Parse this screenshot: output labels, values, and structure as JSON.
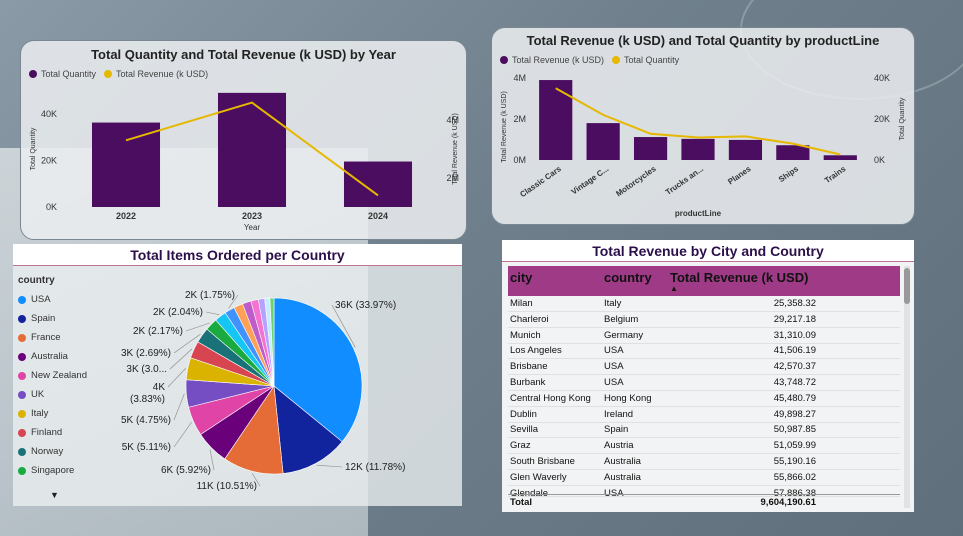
{
  "colors": {
    "quantity": "#4a0d5f",
    "revenue": "#e6b800",
    "table_header": "#9e3a86",
    "table_title": "#2b0f4a"
  },
  "chart_data": [
    {
      "type": "bar",
      "title": "Total Quantity and Total Revenue (k USD) by Year",
      "legend": [
        "Total Quantity",
        "Total Revenue (k USD)"
      ],
      "xlabel": "Year",
      "ylabel": "Total Quantity",
      "y2label": "Total Revenue (k USD)",
      "categories": [
        "2022",
        "2023",
        "2024"
      ],
      "y_ticks": [
        "0K",
        "20K",
        "40K"
      ],
      "y2_ticks": [
        "2M",
        "4M"
      ],
      "ylim": [
        0,
        50000
      ],
      "y2lim": [
        1000,
        5000
      ],
      "series": [
        {
          "name": "Total Quantity",
          "type": "bar",
          "values": [
            36400,
            49200,
            19600
          ]
        },
        {
          "name": "Total Revenue (k USD)",
          "type": "line",
          "values": [
            3300,
            4600,
            1400
          ]
        }
      ]
    },
    {
      "type": "bar",
      "title": "Total Revenue (k USD) and Total Quantity by productLine",
      "legend": [
        "Total Revenue (k USD)",
        "Total Quantity"
      ],
      "xlabel": "productLine",
      "ylabel": "Total Revenue (k USD)",
      "y2label": "Total Quantity",
      "categories": [
        "Classic Cars",
        "Vintage C...",
        "Motorcycles",
        "Trucks an...",
        "Planes",
        "Ships",
        "Trains"
      ],
      "y_ticks": [
        "0M",
        "2M",
        "4M"
      ],
      "y2_ticks": [
        "0K",
        "20K",
        "40K"
      ],
      "ylim": [
        0,
        4000
      ],
      "y2lim": [
        0,
        40000
      ],
      "series": [
        {
          "name": "Total Revenue (k USD)",
          "type": "bar",
          "values": [
            3900,
            1800,
            1120,
            1030,
            980,
            720,
            230
          ]
        },
        {
          "name": "Total Quantity",
          "type": "line",
          "values": [
            35000,
            22000,
            12800,
            11000,
            11500,
            8000,
            2700
          ]
        }
      ]
    },
    {
      "type": "pie",
      "title": "Total Items Ordered per Country",
      "legend_title": "country",
      "legend": [
        "USA",
        "Spain",
        "France",
        "Australia",
        "New Zealand",
        "UK",
        "Italy",
        "Finland",
        "Norway",
        "Singapore"
      ],
      "slices": [
        {
          "name": "USA",
          "value": 33.97,
          "label": "36K (33.97%)",
          "color": "#118dff"
        },
        {
          "name": "Spain",
          "value": 11.78,
          "label": "12K (11.78%)",
          "color": "#12239e"
        },
        {
          "name": "France",
          "value": 10.51,
          "label": "11K (10.51%)",
          "color": "#e66c37"
        },
        {
          "name": "Australia",
          "value": 5.92,
          "label": "6K (5.92%)",
          "color": "#6b007b"
        },
        {
          "name": "New Zealand",
          "value": 5.11,
          "label": "5K (5.11%)",
          "color": "#e044a7"
        },
        {
          "name": "UK",
          "value": 4.75,
          "label": "5K (4.75%)",
          "color": "#744ec2"
        },
        {
          "name": "Italy",
          "value": 3.83,
          "label": "4K\n(3.83%)",
          "color": "#d9b300"
        },
        {
          "name": "Finland",
          "value": 3.0,
          "label": "3K (3.0...",
          "color": "#d64550"
        },
        {
          "name": "Norway",
          "value": 2.69,
          "label": "3K (2.69%)",
          "color": "#197278"
        },
        {
          "name": "Singapore",
          "value": 2.17,
          "label": "2K (2.17%)",
          "color": "#1aab40"
        },
        {
          "name": "",
          "value": 2.04,
          "label": "2K (2.04%)",
          "color": "#15c6f4"
        },
        {
          "name": "",
          "value": 1.75,
          "label": "2K (1.75%)",
          "color": "#4092ff"
        },
        {
          "name": "",
          "value": 1.6,
          "label": "",
          "color": "#ffa058"
        },
        {
          "name": "",
          "value": 1.5,
          "label": "",
          "color": "#be5dc9"
        },
        {
          "name": "",
          "value": 1.3,
          "label": "",
          "color": "#f472d0"
        },
        {
          "name": "",
          "value": 1.1,
          "label": "",
          "color": "#b5a1ff"
        },
        {
          "name": "",
          "value": 0.9,
          "label": "",
          "color": "#c4ecff"
        },
        {
          "name": "",
          "value": 0.7,
          "label": "",
          "color": "#6bd46b"
        }
      ]
    }
  ],
  "table": {
    "title": "Total Revenue by City and Country",
    "headers": [
      "city",
      "country",
      "Total Revenue (k USD)"
    ],
    "rows": [
      [
        "Milan",
        "Italy",
        "25,358.32"
      ],
      [
        "Charleroi",
        "Belgium",
        "29,217.18"
      ],
      [
        "Munich",
        "Germany",
        "31,310.09"
      ],
      [
        "Los Angeles",
        "USA",
        "41,506.19"
      ],
      [
        "Brisbane",
        "USA",
        "42,570.37"
      ],
      [
        "Burbank",
        "USA",
        "43,748.72"
      ],
      [
        "Central Hong Kong",
        "Hong Kong",
        "45,480.79"
      ],
      [
        "Dublin",
        "Ireland",
        "49,898.27"
      ],
      [
        "Sevilla",
        "Spain",
        "50,987.85"
      ],
      [
        "Graz",
        "Austria",
        "51,059.99"
      ],
      [
        "South Brisbane",
        "Australia",
        "55,190.16"
      ],
      [
        "Glen Waverly",
        "Australia",
        "55,866.02"
      ],
      [
        "Glendale",
        "USA",
        "57,886.38"
      ]
    ],
    "total_label": "Total",
    "total_value": "9,604,190.61"
  }
}
